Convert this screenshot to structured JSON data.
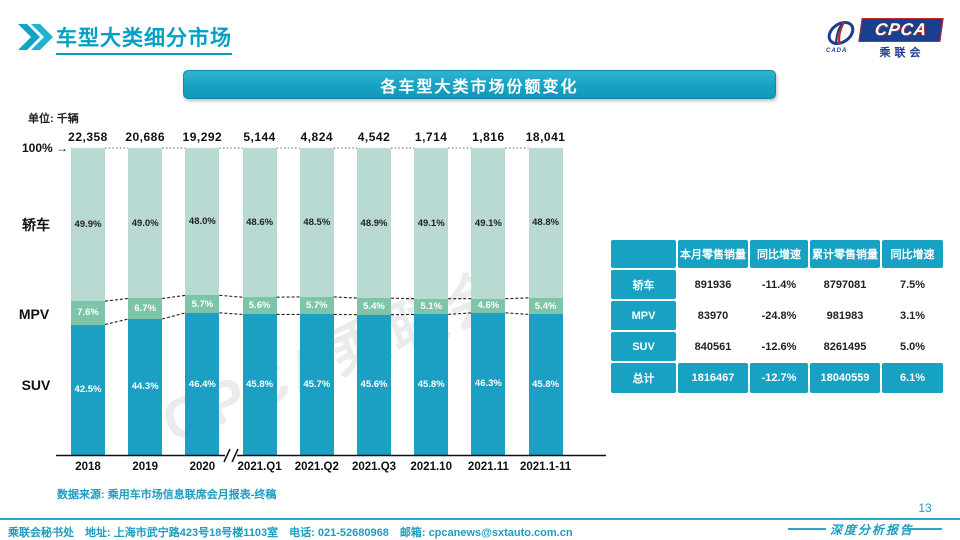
{
  "page": {
    "title": "车型大类细分市场",
    "banner": "各车型大类市场份额变化",
    "page_number": "13",
    "report_label": "深度分析报告",
    "watermark": "CPCA乘联会"
  },
  "logo": {
    "main": "CPCA",
    "sub": "乘联会",
    "icon_text": "CADA"
  },
  "chart_data": {
    "type": "bar",
    "stacked": true,
    "percent_scale": true,
    "unit_label": "单位: 千辆",
    "y_ref_label": "100%",
    "y_ref_arrow": "→",
    "categories": [
      "2018",
      "2019",
      "2020",
      "2021.Q1",
      "2021.Q2",
      "2021.Q3",
      "2021.10",
      "2021.11",
      "2021.1-11"
    ],
    "totals": [
      "22,358",
      "20,686",
      "19,292",
      "5,144",
      "4,824",
      "4,542",
      "1,714",
      "1,816",
      "18,041"
    ],
    "axis_break_after_index": 2,
    "series": [
      {
        "key": "sedan",
        "name": "轿车",
        "color": "#b8dad3",
        "label_color": "#222222",
        "values": [
          49.9,
          49.0,
          48.0,
          48.6,
          48.5,
          48.9,
          49.1,
          49.1,
          48.8
        ],
        "labels": [
          "49.9%",
          "49.0%",
          "48.0%",
          "48.6%",
          "48.5%",
          "48.9%",
          "49.1%",
          "49.1%",
          "48.8%"
        ]
      },
      {
        "key": "mpv",
        "name": "MPV",
        "color": "#7cc5a8",
        "label_color": "#ffffff",
        "values": [
          7.6,
          6.7,
          5.7,
          5.6,
          5.7,
          5.4,
          5.1,
          4.6,
          5.4
        ],
        "labels": [
          "7.6%",
          "6.7%",
          "5.7%",
          "5.6%",
          "5.7%",
          "5.4%",
          "5.1%",
          "4.6%",
          "5.4%"
        ]
      },
      {
        "key": "suv",
        "name": "SUV",
        "color": "#1b9fc2",
        "label_color": "#ffffff",
        "values": [
          42.5,
          44.3,
          46.4,
          45.8,
          45.7,
          45.6,
          45.8,
          46.3,
          45.8
        ],
        "labels": [
          "42.5%",
          "44.3%",
          "46.4%",
          "45.8%",
          "45.7%",
          "45.6%",
          "45.8%",
          "46.3%",
          "45.8%"
        ]
      }
    ],
    "source_note": "数据来源: 乘用车市场信息联席会月报表-终稿"
  },
  "table": {
    "headers": [
      "",
      "本月零售销量",
      "同比增速",
      "累计零售销量",
      "同比增速"
    ],
    "rows": [
      {
        "label": "轿车",
        "cells": [
          "891936",
          "-11.4%",
          "8797081",
          "7.5%"
        ]
      },
      {
        "label": "MPV",
        "cells": [
          "83970",
          "-24.8%",
          "981983",
          "3.1%"
        ]
      },
      {
        "label": "SUV",
        "cells": [
          "840561",
          "-12.6%",
          "8261495",
          "5.0%"
        ]
      }
    ],
    "total_row": {
      "label": "总计",
      "cells": [
        "1816467",
        "-12.7%",
        "18040559",
        "6.1%"
      ]
    }
  },
  "footer": {
    "text": "乘联会秘书处　地址: 上海市武宁路423号18号楼1103室　电话: 021-52680968　邮箱: cpcanews@sxtauto.com.cn"
  },
  "colors": {
    "teal": "#17a2c3",
    "title_teal": "#00a0c6",
    "sedan_green": "#b8dad3",
    "mpv_green": "#7cc5a8",
    "suv_blue": "#1b9fc2",
    "logo_blue": "#1b3f8f",
    "logo_red": "#c42a2a"
  }
}
